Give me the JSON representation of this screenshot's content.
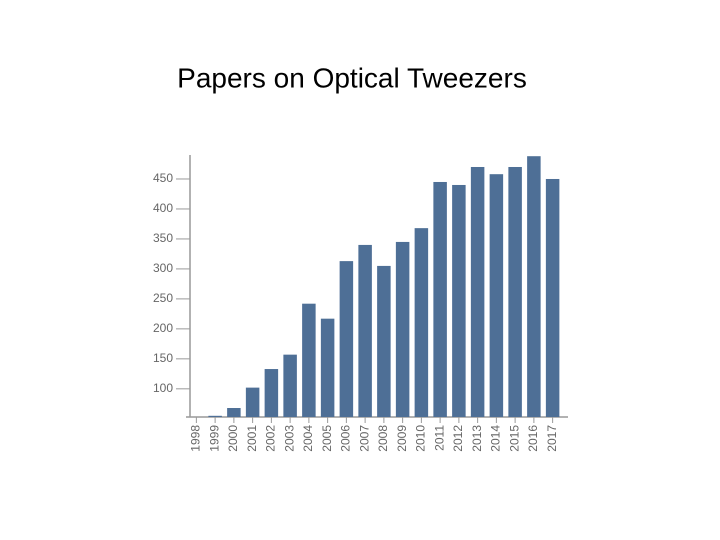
{
  "chart_data": {
    "type": "bar",
    "title": "Papers on Optical Tweezers",
    "categories": [
      "1998",
      "1999",
      "2000",
      "2001",
      "2002",
      "2003",
      "2004",
      "2005",
      "2006",
      "2007",
      "2008",
      "2009",
      "2010",
      "2011",
      "2012",
      "2013",
      "2014",
      "2015",
      "2016",
      "2017"
    ],
    "values": [
      53,
      55,
      68,
      102,
      133,
      157,
      242,
      217,
      313,
      340,
      305,
      345,
      368,
      445,
      440,
      470,
      458,
      470,
      488,
      450
    ],
    "color": "#4e6f96",
    "ylim": [
      53,
      490
    ],
    "yticks": [
      100,
      150,
      200,
      250,
      300,
      350,
      400,
      450
    ],
    "grid": false
  }
}
